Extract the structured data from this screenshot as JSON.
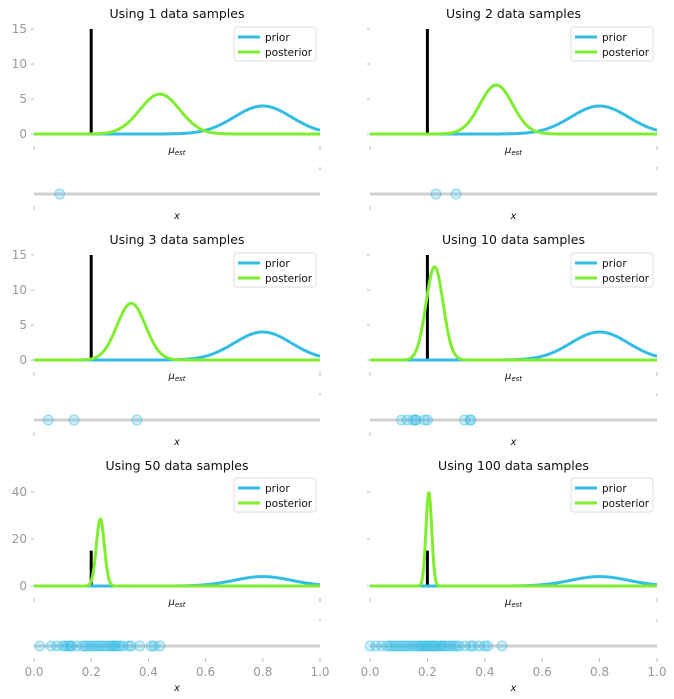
{
  "colors": {
    "prior": "#33bde6",
    "posterior": "#7eee2e",
    "true_mean": "#000000",
    "baseline": "#d0d0d0",
    "samples": "#33bde6",
    "tick_text": "#999999"
  },
  "chart_data": [
    {
      "type": "line",
      "title": "Using 1 data samples",
      "xlabel": "μ_est",
      "xlim": [
        0,
        1
      ],
      "ylim": [
        0,
        15
      ],
      "yticks": [
        0,
        5,
        10,
        15
      ],
      "legend": {
        "position": "top-right",
        "entries": [
          "prior",
          "posterior"
        ]
      },
      "true_mean": {
        "x": 0.2,
        "height": 15
      },
      "series": [
        {
          "name": "prior",
          "mu": 0.8,
          "sigma": 0.1,
          "peak": 4.0
        },
        {
          "name": "posterior",
          "mu": 0.44,
          "sigma": 0.07,
          "peak": 5.7
        }
      ],
      "samples": {
        "xlabel": "x",
        "x": [
          0.09
        ]
      }
    },
    {
      "type": "line",
      "title": "Using 2 data samples",
      "xlabel": "μ_est",
      "xlim": [
        0,
        1
      ],
      "ylim": [
        0,
        15
      ],
      "yticks": [
        0,
        5,
        10,
        15
      ],
      "legend": {
        "position": "top-right",
        "entries": [
          "prior",
          "posterior"
        ]
      },
      "true_mean": {
        "x": 0.2,
        "height": 15
      },
      "series": [
        {
          "name": "prior",
          "mu": 0.8,
          "sigma": 0.1,
          "peak": 4.0
        },
        {
          "name": "posterior",
          "mu": 0.44,
          "sigma": 0.057,
          "peak": 7.0
        }
      ],
      "samples": {
        "xlabel": "x",
        "x": [
          0.23,
          0.3
        ]
      }
    },
    {
      "type": "line",
      "title": "Using 3 data samples",
      "xlabel": "μ_est",
      "xlim": [
        0,
        1
      ],
      "ylim": [
        0,
        15
      ],
      "yticks": [
        0,
        5,
        10,
        15
      ],
      "legend": {
        "position": "top-right",
        "entries": [
          "prior",
          "posterior"
        ]
      },
      "true_mean": {
        "x": 0.2,
        "height": 15
      },
      "series": [
        {
          "name": "prior",
          "mu": 0.8,
          "sigma": 0.1,
          "peak": 4.0
        },
        {
          "name": "posterior",
          "mu": 0.34,
          "sigma": 0.05,
          "peak": 8.1
        }
      ],
      "samples": {
        "xlabel": "x",
        "x": [
          0.05,
          0.14,
          0.36
        ]
      }
    },
    {
      "type": "line",
      "title": "Using 10 data samples",
      "xlabel": "μ_est",
      "xlim": [
        0,
        1
      ],
      "ylim": [
        0,
        15
      ],
      "yticks": [
        0,
        5,
        10,
        15
      ],
      "legend": {
        "position": "top-right",
        "entries": [
          "prior",
          "posterior"
        ]
      },
      "true_mean": {
        "x": 0.2,
        "height": 15
      },
      "series": [
        {
          "name": "prior",
          "mu": 0.8,
          "sigma": 0.1,
          "peak": 4.0
        },
        {
          "name": "posterior",
          "mu": 0.225,
          "sigma": 0.03,
          "peak": 13.3
        }
      ],
      "samples": {
        "xlabel": "x",
        "x": [
          0.11,
          0.13,
          0.15,
          0.16,
          0.16,
          0.19,
          0.2,
          0.33,
          0.35,
          0.35
        ]
      }
    },
    {
      "type": "line",
      "title": "Using 50 data samples",
      "xlabel": "μ_est",
      "xlim": [
        0,
        1
      ],
      "ylim": [
        0,
        45
      ],
      "yticks": [
        0,
        20,
        40
      ],
      "legend": {
        "position": "top-right",
        "entries": [
          "prior",
          "posterior"
        ]
      },
      "true_mean": {
        "x": 0.2,
        "height": 15
      },
      "series": [
        {
          "name": "prior",
          "mu": 0.8,
          "sigma": 0.1,
          "peak": 4.0
        },
        {
          "name": "posterior",
          "mu": 0.232,
          "sigma": 0.014,
          "peak": 28.5
        }
      ],
      "samples": {
        "xlabel": "x",
        "x": [
          0.02,
          0.06,
          0.08,
          0.1,
          0.11,
          0.12,
          0.13,
          0.13,
          0.15,
          0.17,
          0.18,
          0.19,
          0.2,
          0.21,
          0.22,
          0.23,
          0.24,
          0.25,
          0.26,
          0.27,
          0.28,
          0.28,
          0.29,
          0.3,
          0.31,
          0.33,
          0.34,
          0.37,
          0.41,
          0.42,
          0.44
        ]
      }
    },
    {
      "type": "line",
      "title": "Using 100 data samples",
      "xlabel": "μ_est",
      "xlim": [
        0,
        1
      ],
      "ylim": [
        0,
        45
      ],
      "yticks": [
        0,
        20,
        40
      ],
      "legend": {
        "position": "top-right",
        "entries": [
          "prior",
          "posterior"
        ]
      },
      "true_mean": {
        "x": 0.2,
        "height": 15
      },
      "series": [
        {
          "name": "prior",
          "mu": 0.8,
          "sigma": 0.1,
          "peak": 4.0
        },
        {
          "name": "posterior",
          "mu": 0.205,
          "sigma": 0.01,
          "peak": 40.0
        }
      ],
      "samples": {
        "xlabel": "x",
        "x": [
          0.0,
          0.02,
          0.04,
          0.06,
          0.07,
          0.08,
          0.09,
          0.1,
          0.11,
          0.12,
          0.13,
          0.14,
          0.15,
          0.16,
          0.17,
          0.18,
          0.18,
          0.19,
          0.2,
          0.2,
          0.21,
          0.22,
          0.22,
          0.23,
          0.24,
          0.25,
          0.25,
          0.26,
          0.27,
          0.28,
          0.29,
          0.3,
          0.31,
          0.33,
          0.35,
          0.36,
          0.38,
          0.4,
          0.41,
          0.46
        ]
      }
    }
  ],
  "shared_xaxis": {
    "ticks": [
      "0.0",
      "0.2",
      "0.4",
      "0.6",
      "0.8",
      "1.0"
    ]
  }
}
